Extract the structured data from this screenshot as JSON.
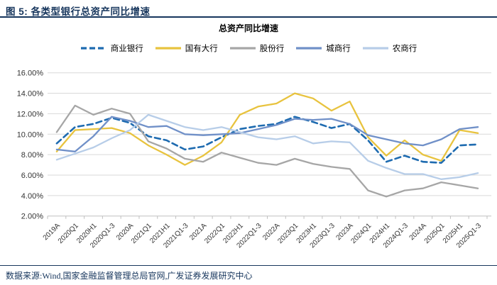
{
  "figure": {
    "header_title": "图 5: 各类型银行总资产同比增速"
  },
  "chart": {
    "title": "总资产同比增速"
  },
  "chart_data": {
    "type": "line",
    "title": "总资产同比增速",
    "categories": [
      "2019A",
      "2020Q1",
      "2020H1",
      "2020Q1-3",
      "2020A",
      "2021Q1",
      "2021H1",
      "2021Q1-3",
      "2021A",
      "2022Q1",
      "2022H1",
      "2022Q1-3",
      "2022A",
      "2023Q1",
      "2023H1",
      "2023Q1-3",
      "2023A",
      "2024Q1",
      "2024H1",
      "2024Q1-3",
      "2024A",
      "2025Q1",
      "2025H1",
      "2025Q1-3"
    ],
    "series": [
      {
        "name": "商业银行",
        "color": "#1e6bb0",
        "dashed": true,
        "values": [
          9.1,
          10.7,
          11.0,
          11.6,
          11.1,
          9.8,
          9.4,
          8.5,
          8.8,
          9.7,
          10.5,
          10.8,
          11.0,
          11.7,
          11.2,
          10.6,
          11.0,
          9.4,
          7.3,
          7.9,
          7.3,
          7.2,
          8.9,
          9.0
        ]
      },
      {
        "name": "国有大行",
        "color": "#e8c33e",
        "dashed": false,
        "values": [
          8.3,
          10.4,
          10.5,
          10.6,
          10.1,
          8.9,
          8.0,
          7.0,
          7.9,
          9.2,
          11.9,
          12.7,
          13.0,
          14.0,
          13.5,
          12.3,
          13.2,
          9.7,
          7.9,
          9.4,
          8.0,
          7.4,
          10.4,
          10.1
        ]
      },
      {
        "name": "股份行",
        "color": "#a6a6a6",
        "dashed": false,
        "values": [
          10.2,
          12.8,
          11.9,
          12.5,
          12.0,
          9.3,
          8.6,
          7.6,
          7.3,
          8.2,
          7.7,
          7.2,
          7.0,
          7.6,
          7.1,
          6.8,
          6.6,
          4.5,
          3.9,
          4.5,
          4.7,
          5.3,
          5.0,
          4.7
        ]
      },
      {
        "name": "城商行",
        "color": "#7090c8",
        "dashed": false,
        "values": [
          8.5,
          8.3,
          9.8,
          11.7,
          11.3,
          10.7,
          10.8,
          10.0,
          9.9,
          10.0,
          10.1,
          10.5,
          10.9,
          11.5,
          11.4,
          11.5,
          11.0,
          9.9,
          9.5,
          9.1,
          8.9,
          9.5,
          10.5,
          10.7
        ]
      },
      {
        "name": "农商行",
        "color": "#b7cde8",
        "dashed": false,
        "values": [
          7.5,
          8.1,
          8.7,
          9.6,
          10.4,
          11.9,
          11.3,
          10.7,
          10.4,
          10.7,
          10.2,
          9.7,
          9.5,
          9.8,
          9.1,
          9.3,
          9.2,
          7.4,
          6.7,
          6.1,
          6.1,
          5.6,
          5.8,
          6.2
        ]
      }
    ],
    "ylim": [
      2,
      16
    ],
    "yticks": [
      {
        "value": 16,
        "label": "16.00%"
      },
      {
        "value": 14,
        "label": "14.00%"
      },
      {
        "value": 12,
        "label": "12.00%"
      },
      {
        "value": 10,
        "label": "10.00%"
      },
      {
        "value": 8,
        "label": "8.00%"
      },
      {
        "value": 6,
        "label": "6.00%"
      },
      {
        "value": 4,
        "label": "4.00%"
      },
      {
        "value": 2,
        "label": "2.00%"
      }
    ],
    "grid": true,
    "legend_position": "top",
    "colors": {
      "gridline": "#d9d9d9",
      "axis": "#bfbfbf",
      "tick_label": "#333333"
    }
  },
  "footer": {
    "source": "数据来源:Wind,国家金融监督管理总局官网,广发证券发展研究中心"
  }
}
